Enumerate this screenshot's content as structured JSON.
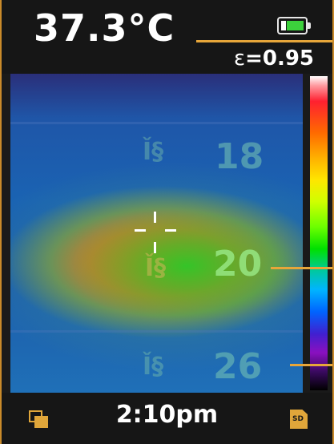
{
  "header": {
    "temperature": "37.3°C",
    "emissivity_symbol": "ε",
    "emissivity_value": "=0.95",
    "battery_icon": "battery-full-icon"
  },
  "thermal_view": {
    "scene_numbers": [
      "18",
      "20",
      "26"
    ],
    "crosshair_icon": "crosshair-icon"
  },
  "color_scale": {
    "marker_count": 2
  },
  "footer": {
    "time": "2:10pm",
    "left_icon": "gallery-icon",
    "right_icon": "sd-card-icon",
    "sd_label": "SD"
  },
  "colors": {
    "accent": "#e7a63a",
    "battery_fill": "#3cd13c",
    "background": "#161616"
  }
}
